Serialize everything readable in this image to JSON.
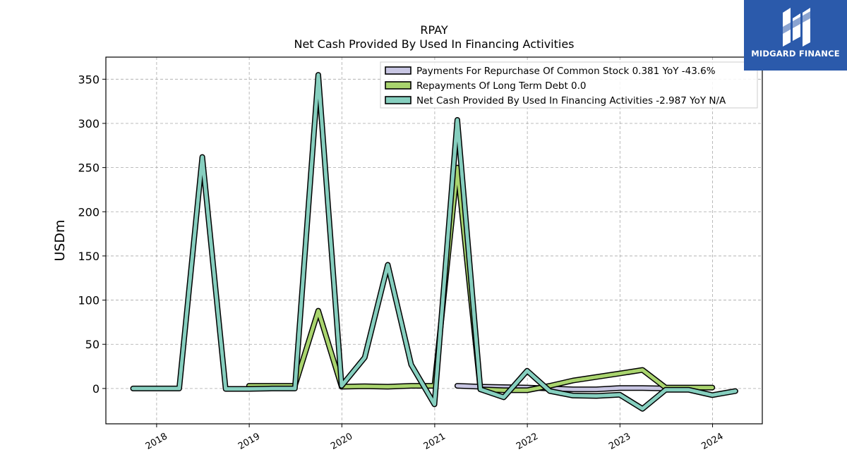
{
  "logo": {
    "text": "MIDGARD FINANCE",
    "icon": "midgard-m-icon",
    "bg": "#2b5aab"
  },
  "chart_data": {
    "type": "line",
    "title": "RPAY",
    "subtitle": "Net Cash Provided By Used In Financing Activities",
    "xlabel": "",
    "ylabel": "USDm",
    "ylim": [
      -40,
      375
    ],
    "xlim": [
      "2017-06-15",
      "2024-07-15"
    ],
    "yticks": [
      0,
      50,
      100,
      150,
      200,
      250,
      300,
      350
    ],
    "xticks": [
      "2018",
      "2019",
      "2020",
      "2021",
      "2022",
      "2023",
      "2024"
    ],
    "grid": true,
    "legend_position": "top-right",
    "series": [
      {
        "name": "Payments For Repurchase Of Common Stock",
        "legend_label": "Payments For Repurchase Of Common Stock  0.381 YoY -43.6%",
        "color": "#c8c6e3",
        "points": [
          [
            "2021-03-31",
            3
          ],
          [
            "2021-06-30",
            2
          ],
          [
            "2021-09-30",
            1.5
          ],
          [
            "2021-12-31",
            1
          ],
          [
            "2022-03-31",
            0
          ],
          [
            "2022-06-30",
            -1
          ],
          [
            "2022-09-30",
            -1
          ],
          [
            "2022-12-31",
            0.5
          ],
          [
            "2023-03-31",
            0.5
          ],
          [
            "2023-06-30",
            0
          ]
        ]
      },
      {
        "name": "Repayments Of Long Term Debt",
        "legend_label": "Repayments Of Long Term Debt  0.0",
        "color": "#a9d46e",
        "points": [
          [
            "2018-12-31",
            3
          ],
          [
            "2019-03-31",
            3
          ],
          [
            "2019-06-30",
            3
          ],
          [
            "2019-09-30",
            88
          ],
          [
            "2019-12-31",
            2
          ],
          [
            "2020-03-31",
            2.5
          ],
          [
            "2020-06-30",
            2
          ],
          [
            "2020-09-30",
            3
          ],
          [
            "2020-12-31",
            3
          ],
          [
            "2021-03-31",
            250
          ],
          [
            "2021-06-30",
            -1
          ],
          [
            "2021-09-30",
            -2
          ],
          [
            "2021-12-31",
            -2
          ],
          [
            "2022-03-31",
            3
          ],
          [
            "2022-06-30",
            9
          ],
          [
            "2022-09-30",
            13
          ],
          [
            "2022-12-31",
            17
          ],
          [
            "2023-03-31",
            21
          ],
          [
            "2023-06-30",
            1
          ],
          [
            "2023-09-30",
            1
          ],
          [
            "2023-12-31",
            1
          ]
        ]
      },
      {
        "name": "Net Cash Provided By Used In Financing Activities",
        "legend_label": "Net Cash Provided By Used In Financing Activities  -2.987 YoY N/A",
        "color": "#86cfbf",
        "points": [
          [
            "2017-09-30",
            0
          ],
          [
            "2017-12-31",
            0
          ],
          [
            "2018-03-31",
            0
          ],
          [
            "2018-06-30",
            262
          ],
          [
            "2018-09-30",
            -0.5
          ],
          [
            "2018-12-31",
            -0.5
          ],
          [
            "2019-03-31",
            0
          ],
          [
            "2019-06-30",
            0
          ],
          [
            "2019-09-30",
            355
          ],
          [
            "2019-12-31",
            3
          ],
          [
            "2020-03-31",
            35
          ],
          [
            "2020-06-30",
            140
          ],
          [
            "2020-09-30",
            27
          ],
          [
            "2020-12-31",
            -18
          ],
          [
            "2021-03-31",
            304
          ],
          [
            "2021-06-30",
            -1
          ],
          [
            "2021-09-30",
            -10
          ],
          [
            "2021-12-31",
            20
          ],
          [
            "2022-03-31",
            -3
          ],
          [
            "2022-06-30",
            -8
          ],
          [
            "2022-09-30",
            -8.5
          ],
          [
            "2022-12-31",
            -7
          ],
          [
            "2023-03-31",
            -23
          ],
          [
            "2023-06-30",
            -1.5
          ],
          [
            "2023-09-30",
            -1.5
          ],
          [
            "2023-12-31",
            -7.5
          ],
          [
            "2024-03-31",
            -3
          ]
        ]
      }
    ]
  }
}
